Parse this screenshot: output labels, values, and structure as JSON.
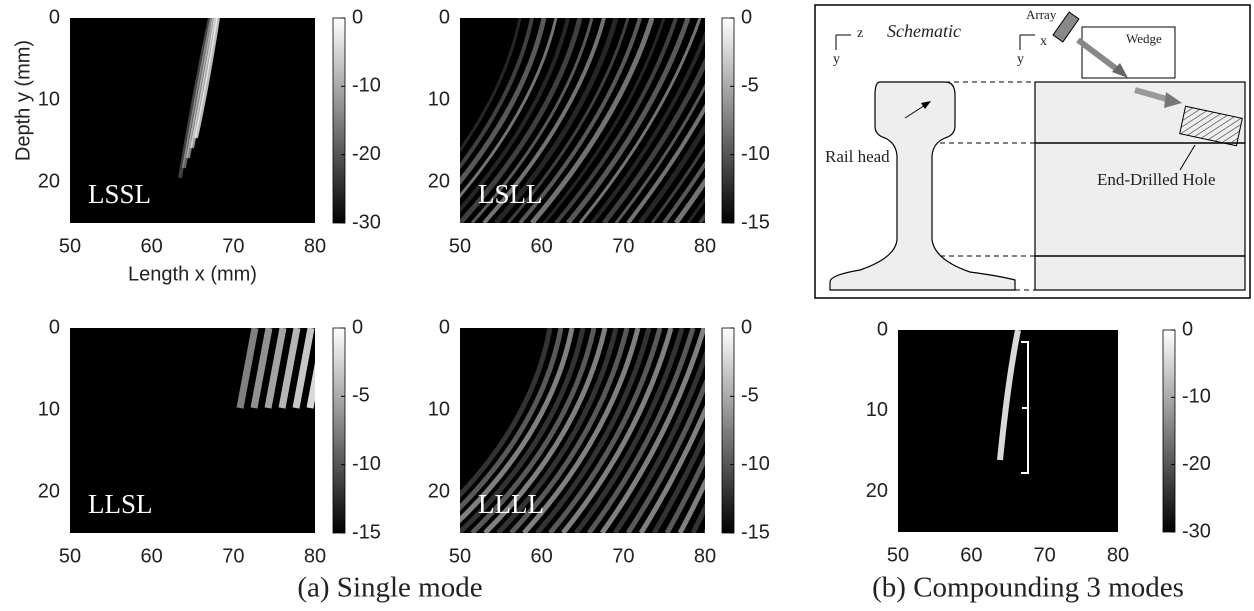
{
  "chart_data": [
    {
      "type": "image",
      "label": "LSSL",
      "xlabel": "Length x (mm)",
      "ylabel": "Depth y (mm)",
      "xlim": [
        50,
        80
      ],
      "ylim": [
        0,
        25
      ],
      "xticks": [
        50,
        60,
        70,
        80
      ],
      "yticks": [
        0,
        10,
        20
      ],
      "clim": [
        -30,
        0
      ],
      "cticks": [
        0,
        -10,
        -20,
        -30
      ]
    },
    {
      "type": "image",
      "label": "LSLL",
      "xlim": [
        50,
        80
      ],
      "ylim": [
        0,
        25
      ],
      "xticks": [
        50,
        60,
        70,
        80
      ],
      "yticks": [
        0,
        10,
        20
      ],
      "clim": [
        -15,
        0
      ],
      "cticks": [
        0,
        -5,
        -10,
        -15
      ]
    },
    {
      "type": "image",
      "label": "LLSL",
      "xlim": [
        50,
        80
      ],
      "ylim": [
        0,
        25
      ],
      "xticks": [
        50,
        60,
        70,
        80
      ],
      "yticks": [
        0,
        10,
        20
      ],
      "clim": [
        -15,
        0
      ],
      "cticks": [
        0,
        -5,
        -10,
        -15
      ]
    },
    {
      "type": "image",
      "label": "LLLL",
      "xlim": [
        50,
        80
      ],
      "ylim": [
        0,
        25
      ],
      "xticks": [
        50,
        60,
        70,
        80
      ],
      "yticks": [
        0,
        10,
        20
      ],
      "clim": [
        -15,
        0
      ],
      "cticks": [
        0,
        -5,
        -10,
        -15
      ]
    },
    {
      "type": "image",
      "xlim": [
        50,
        80
      ],
      "ylim": [
        0,
        25
      ],
      "xticks": [
        50,
        60,
        70,
        80
      ],
      "yticks": [
        0,
        10,
        20
      ],
      "clim": [
        -30,
        0
      ],
      "cticks": [
        0,
        -10,
        -20,
        -30
      ]
    }
  ],
  "schematic": {
    "title": "Schematic",
    "axes_left": [
      "z",
      "y"
    ],
    "axes_right": [
      "x",
      "y"
    ],
    "array": "Array",
    "wedge": "Wedge",
    "rail_head": "Rail head",
    "hole": "End-Drilled Hole"
  },
  "captions": [
    "(a) Single mode",
    "(b) Compounding 3 modes"
  ]
}
